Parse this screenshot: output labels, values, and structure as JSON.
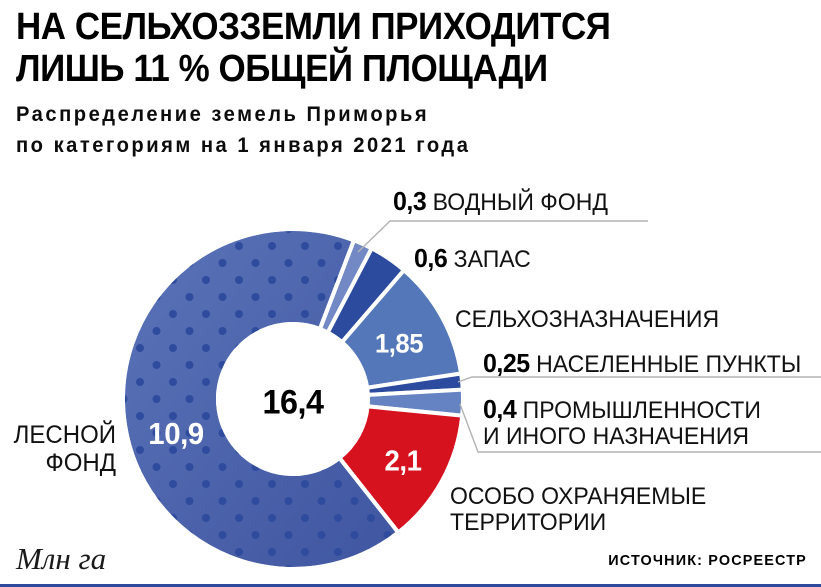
{
  "header": {
    "title_line1": "НА СЕЛЬХОЗЗЕМЛИ ПРИХОДИТСЯ",
    "title_line2": "ЛИШЬ 11 % ОБЩЕЙ ПЛОЩАДИ",
    "subtitle_line1": "Распределение земель Приморья",
    "subtitle_line2": "по категориям на 1 января 2021 года"
  },
  "chart_data": {
    "type": "pie",
    "title": "НА СЕЛЬХОЗЗЕМЛИ ПРИХОДИТСЯ ЛИШЬ 11 % ОБЩЕЙ ПЛОЩАДИ",
    "subtitle": "Распределение земель Приморья по категориям на 1 января 2021 года",
    "units": "Млн га",
    "total_value": 16.4,
    "total_label": "16,4",
    "legend_position": "around",
    "segments": [
      {
        "id": "water-fund",
        "label": "ВОДНЫЙ ФОНД",
        "value": 0.3,
        "value_label": "0,3",
        "color": "#7289c5"
      },
      {
        "id": "reserve",
        "label": "ЗАПАС",
        "value": 0.6,
        "value_label": "0,6",
        "color": "#2c4b9e"
      },
      {
        "id": "agricultural",
        "label": "СЕЛЬХОЗНАЗНАЧЕНИЯ",
        "value": 1.85,
        "value_label": "1,85",
        "color": "#5477b9"
      },
      {
        "id": "settlements",
        "label": "НАСЕЛЕННЫЕ ПУНКТЫ",
        "value": 0.25,
        "value_label": "0,25",
        "color": "#2c4b9e"
      },
      {
        "id": "industrial",
        "label": "ПРОМЫШЛЕННОСТИ И ИНОГО НАЗНАЧЕНИЯ",
        "value": 0.4,
        "value_label": "0,4",
        "color": "#6583c2"
      },
      {
        "id": "protected-areas",
        "label": "ОСОБО ОХРАНЯЕМЫЕ ТЕРРИТОРИИ",
        "value": 2.1,
        "value_label": "2,1",
        "color": "#d6121f"
      },
      {
        "id": "forest-fund",
        "label": "ЛЕСНОЙ ФОНД",
        "value": 10.9,
        "value_label": "10,9",
        "color": "#5b74b8",
        "color_dark": "#3f55a0",
        "dot_color": "#2e4b9d",
        "pattern": "dots"
      }
    ]
  },
  "callouts": {
    "industrial_line1": "ПРОМЫШЛЕННОСТИ",
    "industrial_line2": "И ИНОГО НАЗНАЧЕНИЯ",
    "protected_line1": "ОСОБО ОХРАНЯЕМЫЕ",
    "protected_line2": "ТЕРРИТОРИИ",
    "forest_line1": "ЛЕСНОЙ",
    "forest_line2": "ФОНД"
  },
  "footer": {
    "units_label": "Млн га",
    "source": "ИСТОЧНИК: РОСРЕЕСТР"
  }
}
